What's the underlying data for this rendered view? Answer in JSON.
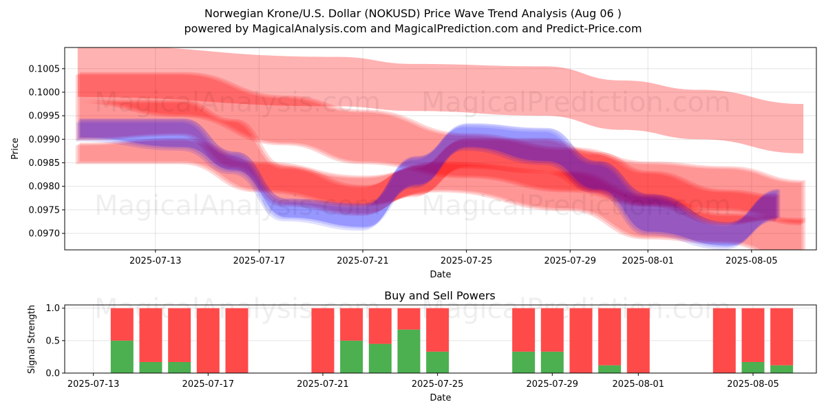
{
  "title_line1": "Norwegian Krone/U.S. Dollar (NOKUSD) Price Wave Trend Analysis (Aug 06 )",
  "title_line2": "powered by MagicalAnalysis.com and MagicalPrediction.com and Predict-Price.com",
  "watermarks": [
    "MagicalAnalysis.com",
    "MagicalPrediction.com"
  ],
  "colors": {
    "red_band": "#ff0000",
    "blue_band": "#0000ff",
    "buy": "#4caf50",
    "sell": "#ff4a4a"
  },
  "chart_data": [
    {
      "type": "area",
      "xlabel": "Date",
      "ylabel": "Price",
      "ylim": [
        0.09665,
        0.10095
      ],
      "xlim": [
        "2025-07-09T12:00",
        "2025-08-07T12:00"
      ],
      "x_ticks": [
        "2025-07-13",
        "2025-07-17",
        "2025-07-21",
        "2025-07-25",
        "2025-07-29",
        "2025-08-01",
        "2025-08-05"
      ],
      "y_ticks": [
        0.097,
        0.0975,
        0.098,
        0.0985,
        0.099,
        0.0995,
        0.1,
        0.1005
      ],
      "grid": true,
      "bands": [
        {
          "color": "red",
          "x": [
            "2025-07-10",
            "2025-07-20",
            "2025-07-23",
            "2025-07-28",
            "2025-07-31",
            "2025-08-03",
            "2025-08-07"
          ],
          "upper": [
            0.101,
            0.10075,
            0.1006,
            0.10055,
            0.10025,
            0.10005,
            0.09975
          ],
          "lower": [
            0.0999,
            0.0997,
            0.0996,
            0.0995,
            0.0992,
            0.099,
            0.0987
          ]
        },
        {
          "color": "red",
          "x": [
            "2025-07-10",
            "2025-07-14",
            "2025-07-18",
            "2025-07-21",
            "2025-07-25",
            "2025-07-29",
            "2025-08-01",
            "2025-08-04",
            "2025-08-07"
          ],
          "upper": [
            0.1004,
            0.1004,
            0.0999,
            0.0996,
            0.0991,
            0.0988,
            0.0985,
            0.0984,
            0.0981
          ],
          "lower": [
            0.0998,
            0.0995,
            0.0989,
            0.0985,
            0.0982,
            0.0979,
            0.0976,
            0.0975,
            0.0972
          ]
        },
        {
          "color": "red",
          "x": [
            "2025-07-10",
            "2025-07-14",
            "2025-07-17",
            "2025-07-21",
            "2025-07-24",
            "2025-07-29",
            "2025-08-01",
            "2025-08-04",
            "2025-08-07"
          ],
          "upper": [
            0.0989,
            0.099,
            0.0985,
            0.0982,
            0.0985,
            0.0983,
            0.0978,
            0.0974,
            0.0973
          ],
          "lower": [
            0.0985,
            0.0985,
            0.0979,
            0.0976,
            0.0979,
            0.0975,
            0.0969,
            0.0968,
            0.0963
          ]
        },
        {
          "color": "red",
          "x": [
            "2025-07-10",
            "2025-07-14",
            "2025-07-16",
            "2025-07-18",
            "2025-07-21",
            "2025-07-23",
            "2025-07-25",
            "2025-07-28",
            "2025-07-30",
            "2025-08-01",
            "2025-08-04",
            "2025-08-06"
          ],
          "upper": [
            0.0998,
            0.0998,
            0.0994,
            0.0984,
            0.098,
            0.0984,
            0.099,
            0.099,
            0.0987,
            0.0983,
            0.0979,
            0.0978
          ],
          "lower": [
            0.099,
            0.0991,
            0.0984,
            0.0976,
            0.0974,
            0.0978,
            0.0984,
            0.0983,
            0.0979,
            0.0976,
            0.0972,
            0.0973
          ]
        },
        {
          "color": "blue",
          "x": [
            "2025-07-10",
            "2025-07-14",
            "2025-07-16",
            "2025-07-18",
            "2025-07-21",
            "2025-07-23",
            "2025-07-25",
            "2025-07-28",
            "2025-07-30",
            "2025-08-01",
            "2025-08-04",
            "2025-08-06"
          ],
          "upper": [
            0.0994,
            0.0994,
            0.0987,
            0.0977,
            0.0976,
            0.0986,
            0.0993,
            0.0992,
            0.0985,
            0.0978,
            0.0972,
            0.0979
          ],
          "lower": [
            0.099,
            0.0988,
            0.0983,
            0.0973,
            0.0971,
            0.098,
            0.0988,
            0.0985,
            0.0979,
            0.097,
            0.0967,
            0.0973
          ]
        }
      ]
    },
    {
      "type": "bar",
      "title": "Buy and Sell Powers",
      "xlabel": "Date",
      "ylabel": "Signal Strength",
      "ylim": [
        0,
        1.05
      ],
      "xlim": [
        "2025-07-12T00:00",
        "2025-08-07T05:00"
      ],
      "x_ticks": [
        "2025-07-13",
        "2025-07-17",
        "2025-07-21",
        "2025-07-25",
        "2025-07-29",
        "2025-08-01",
        "2025-08-05"
      ],
      "y_ticks": [
        0.0,
        0.5,
        1.0
      ],
      "categories": [
        "2025-07-14",
        "2025-07-15",
        "2025-07-16",
        "2025-07-17",
        "2025-07-18",
        "2025-07-21",
        "2025-07-22",
        "2025-07-23",
        "2025-07-24",
        "2025-07-25",
        "2025-07-28",
        "2025-07-29",
        "2025-07-30",
        "2025-07-31",
        "2025-08-01",
        "2025-08-04",
        "2025-08-05",
        "2025-08-06"
      ],
      "series": [
        {
          "name": "Buy",
          "values": [
            0.5,
            0.17,
            0.17,
            0.0,
            0.0,
            0.0,
            0.5,
            0.45,
            0.67,
            0.33,
            0.33,
            0.33,
            0.0,
            0.12,
            0.0,
            0.0,
            0.17,
            0.12
          ]
        },
        {
          "name": "Sell",
          "values": [
            0.5,
            0.83,
            0.83,
            1.0,
            1.0,
            1.0,
            0.5,
            0.55,
            0.33,
            0.67,
            0.67,
            0.67,
            1.0,
            0.88,
            1.0,
            1.0,
            0.83,
            0.88
          ]
        }
      ]
    }
  ]
}
